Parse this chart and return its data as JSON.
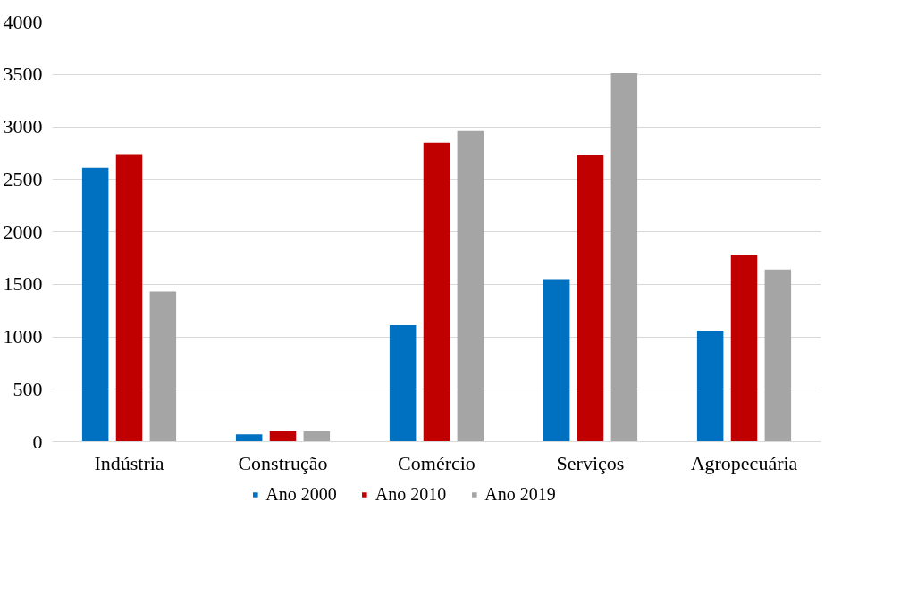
{
  "chart_data": {
    "type": "bar",
    "categories": [
      "Indústria",
      "Construção",
      "Comércio",
      "Serviços",
      "Agropecuária"
    ],
    "series": [
      {
        "name": "Ano 2000",
        "color": "#0070c0",
        "values": [
          2610,
          70,
          1110,
          1550,
          1060
        ]
      },
      {
        "name": "Ano 2010",
        "color": "#c00000",
        "values": [
          2740,
          100,
          2850,
          2730,
          1780
        ]
      },
      {
        "name": "Ano 2019",
        "color": "#a5a5a5",
        "values": [
          1430,
          100,
          2960,
          3510,
          1640
        ]
      }
    ],
    "ylim": [
      0,
      4000
    ],
    "yticks": [
      0,
      500,
      1000,
      1500,
      2000,
      2500,
      3000,
      3500,
      4000
    ],
    "grid": "y",
    "legend": "bottom"
  }
}
